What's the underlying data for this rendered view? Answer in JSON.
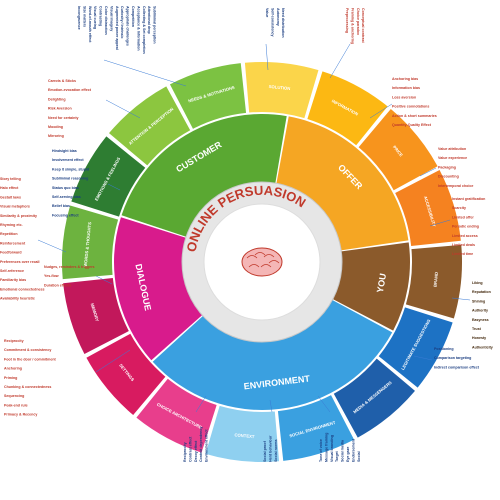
{
  "title": "ONLINE PERSUASION",
  "core": [
    "CUSTOMER",
    "OFFER",
    "YOU",
    "ENVIRONMENT",
    "DIALOGUE"
  ],
  "colors": {
    "customer": "#5aa832",
    "offer": "#f5a623",
    "you": "#8b5a2b",
    "environment": "#3aa0e0",
    "dialogue": "#d81b8c",
    "title": "#c0392b",
    "blue_text": "#1a3d80",
    "red_text": "#c0392b"
  },
  "segments": [
    {
      "name": "NEEDS & MOTIVATIONS",
      "color": "#7cc242",
      "items": [
        "Value",
        "Self-consistency",
        "Autonomy",
        "Need distribution"
      ]
    },
    {
      "name": "SOLUTION",
      "color": "#fbd54a",
      "items": [
        "Preprocessing",
        "Framing & anchoring",
        "Choice paradox",
        "Conceptual contrast"
      ]
    },
    {
      "name": "INFORMATION",
      "color": "#fcb813",
      "items": [
        "Anchoring bias",
        "Information bias",
        "Loss aversion",
        "Positive connotations",
        "Action & short summaries",
        "Quantity-Quality Effect"
      ]
    },
    {
      "name": "PRICE",
      "color": "#f7941d",
      "items": [
        "Value attribution",
        "Value experience",
        "Packaging",
        "Discounting",
        "Intertemporal choice"
      ]
    },
    {
      "name": "ACCESSIBILITY",
      "color": "#f58220",
      "items": [
        "Instant gratification",
        "Scarcity",
        "Limited offer",
        "Periodic ending",
        "Limited access",
        "Limited deals",
        "Limited time"
      ]
    },
    {
      "name": "BRAND",
      "color": "#8b5a2b",
      "items": [
        "Liking",
        "Reputation",
        "Shining",
        "Authority",
        "Easyness",
        "Trust",
        "Honesty",
        "Authenticity"
      ]
    },
    {
      "name": "LEGITIMATE SUGGESTIONS",
      "color": "#1d72c4",
      "items": [
        "Positioning",
        "Comparison targeting",
        "Indirect comparison effect"
      ]
    },
    {
      "name": "MEDIA & MESSENGERS",
      "color": "#1f5faa",
      "items": [
        "Tone of voice",
        "Message framing",
        "Visual branding",
        "Target",
        "Social media",
        "Eye gaze",
        "Endorsement",
        "Social"
      ]
    },
    {
      "name": "SOCIAL ENVIRONMENT",
      "color": "#3aa0e0",
      "items": [
        "Social proof",
        "Herd behaviour",
        "Social norms"
      ]
    },
    {
      "name": "CONTEXT",
      "color": "#8fd0f0",
      "items": [
        "Reciprocity",
        "Contrast effect",
        "Decoy effect",
        "Context dependency",
        "Environment effect"
      ]
    },
    {
      "name": "CHOICE ARCHITECTURE",
      "color": "#e83e8c",
      "items": [
        "Reciprocity",
        "Commitment & consistency",
        "Foot in the door / commitment",
        "Anchoring",
        "Priming",
        "Chunking & connectedness",
        "Sequencing",
        "Peak-end rule",
        "Primacy & Recency"
      ]
    },
    {
      "name": "SETTINGS",
      "color": "#d81b60",
      "items": [
        "Nudges, reminders & triggers",
        "Yes-flow",
        "Duration effects"
      ]
    },
    {
      "name": "MEMORY",
      "color": "#c2185b",
      "items": [
        "Story telling",
        "Halo effect",
        "Gestalt laws",
        "Visual metaphors",
        "Similarity & proximity",
        "Rhyming etc.",
        "Repetition",
        "Reinforcement",
        "Feedforward",
        "Preferences over recall",
        "Self-reference",
        "Familiarity bias",
        "Emotional connectedness",
        "Availability heuristic"
      ]
    },
    {
      "name": "WORDS & THOUGHTS",
      "color": "#6db33f",
      "items": [
        "Hindsight bias",
        "Involvement effect",
        "Keep it simple, stupid",
        "Subliminal reasoning",
        "Status quo bias",
        "Self-serving bias",
        "Belief bias",
        "Focusing effect"
      ]
    },
    {
      "name": "EMOTIONS & FEELINGS",
      "color": "#2e7d32",
      "items": [
        "Carrots & Sticks",
        "Emotion-evocation effect",
        "Delighting",
        "Risk Aversion",
        "Need for certainty",
        "Mooding",
        "Mirroring"
      ]
    },
    {
      "name": "ATTENTION & PERCEPTION",
      "color": "#8cc63f",
      "items": [
        "Incongruence",
        "Size matters",
        "Word-of-mouth effect",
        "Visual cueing",
        "Contrasting",
        "Color distraction",
        "Visual imagery",
        "Augmented power appeal",
        "Curiosity / Intrinsic",
        "Appropriate challenges",
        "Competition",
        "Acceptance & Information",
        "Collecting & Set completion",
        "Attentional drop",
        "Subliminal perception"
      ]
    }
  ]
}
